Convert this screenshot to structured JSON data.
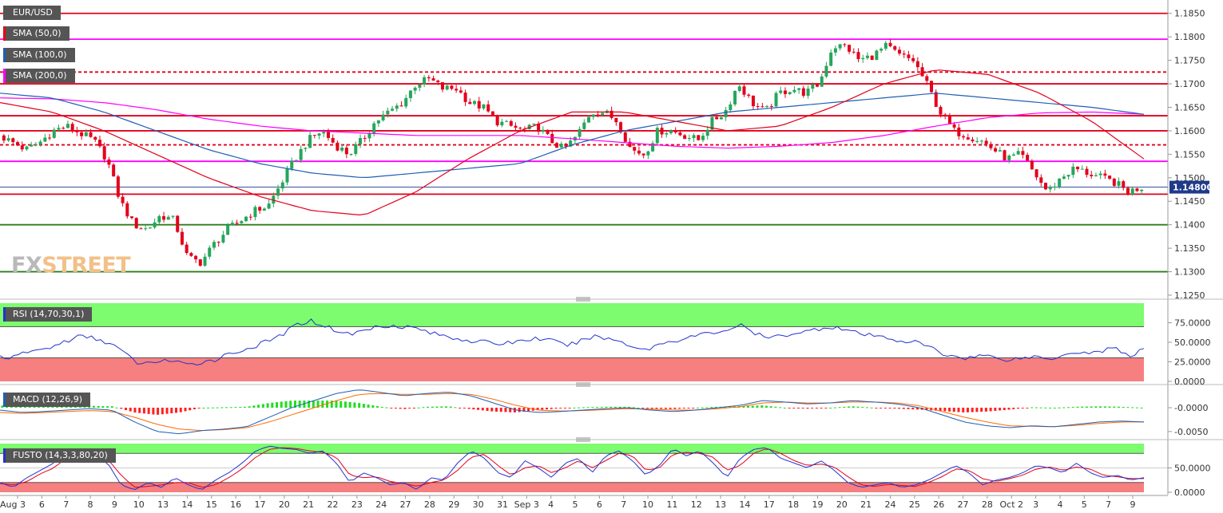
{
  "instrument": "EUR/USD",
  "legend": [
    {
      "text": "EUR/USD",
      "color": "#555555"
    },
    {
      "text": "SMA (50,0)",
      "color": "#e3001b"
    },
    {
      "text": "SMA (100,0)",
      "color": "#1f5fb5"
    },
    {
      "text": "SMA (200,0)",
      "color": "#ff00ff"
    }
  ],
  "logo": {
    "part1": "FX",
    "part2": "STREET"
  },
  "current_price": "1.14800",
  "colors": {
    "up": "#26a65b",
    "down": "#e3001b",
    "sma50": "#e3001b",
    "sma100": "#1f5fb5",
    "sma200": "#ff00ff",
    "hline_red": "#e3001b",
    "hline_magenta": "#ff00ff",
    "hline_green": "#2e7d1e",
    "rsi": "#2233cc",
    "macd": "#1f5fb5",
    "signal": "#ff6a00",
    "stoch_k": "#2233cc",
    "stoch_d": "#e3001b",
    "zone_green": "#7cfc6e",
    "zone_red": "#f67f7f"
  },
  "chart_data": [
    {
      "type": "candlestick",
      "title": "EUR/USD",
      "y_ticks": [
        "1.1850",
        "1.1800",
        "1.1750",
        "1.1700",
        "1.1650",
        "1.1600",
        "1.1550",
        "1.1500",
        "1.1450",
        "1.1400",
        "1.1350",
        "1.1300",
        "1.1250"
      ],
      "ylim": [
        1.125,
        1.1875
      ],
      "x_ticks": [
        "Aug 3",
        "6",
        "7",
        "8",
        "9",
        "10",
        "13",
        "14",
        "15",
        "16",
        "17",
        "20",
        "21",
        "22",
        "23",
        "24",
        "27",
        "28",
        "29",
        "30",
        "31",
        "Sep 3",
        "4",
        "5",
        "6",
        "7",
        "10",
        "11",
        "12",
        "13",
        "14",
        "17",
        "18",
        "19",
        "20",
        "21",
        "24",
        "25",
        "26",
        "27",
        "28",
        "Oct 2",
        "3",
        "4",
        "5",
        "7",
        "9"
      ],
      "close_path": [
        1.159,
        1.1575,
        1.156,
        1.1575,
        1.16,
        1.161,
        1.1595,
        1.158,
        1.154,
        1.145,
        1.14,
        1.139,
        1.142,
        1.141,
        1.133,
        1.132,
        1.136,
        1.139,
        1.141,
        1.143,
        1.144,
        1.149,
        1.154,
        1.158,
        1.16,
        1.157,
        1.155,
        1.158,
        1.162,
        1.164,
        1.166,
        1.17,
        1.171,
        1.169,
        1.169,
        1.166,
        1.165,
        1.162,
        1.161,
        1.16,
        1.161,
        1.158,
        1.156,
        1.159,
        1.164,
        1.164,
        1.162,
        1.156,
        1.155,
        1.16,
        1.16,
        1.159,
        1.158,
        1.162,
        1.164,
        1.17,
        1.166,
        1.164,
        1.168,
        1.169,
        1.168,
        1.17,
        1.178,
        1.178,
        1.175,
        1.176,
        1.178,
        1.176,
        1.175,
        1.17,
        1.164,
        1.16,
        1.159,
        1.158,
        1.156,
        1.154,
        1.155,
        1.151,
        1.147,
        1.15,
        1.152,
        1.151,
        1.15,
        1.149,
        1.147,
        1.148
      ],
      "hlines": [
        {
          "price": 1.185,
          "style": "solid",
          "color": "red"
        },
        {
          "price": 1.1795,
          "style": "solid",
          "color": "magenta"
        },
        {
          "price": 1.1725,
          "style": "dashed",
          "color": "red"
        },
        {
          "price": 1.17,
          "style": "solid",
          "color": "red"
        },
        {
          "price": 1.1632,
          "style": "solid",
          "color": "red"
        },
        {
          "price": 1.16,
          "style": "solid",
          "color": "red"
        },
        {
          "price": 1.157,
          "style": "dashed",
          "color": "red"
        },
        {
          "price": 1.1535,
          "style": "solid",
          "color": "magenta"
        },
        {
          "price": 1.1465,
          "style": "solid",
          "color": "red"
        },
        {
          "price": 1.14,
          "style": "solid",
          "color": "green"
        },
        {
          "price": 1.13,
          "style": "solid",
          "color": "green"
        }
      ],
      "sma50": [
        1.166,
        1.164,
        1.16,
        1.155,
        1.15,
        1.146,
        1.143,
        1.142,
        1.147,
        1.154,
        1.16,
        1.164,
        1.164,
        1.162,
        1.16,
        1.161,
        1.165,
        1.17,
        1.173,
        1.172,
        1.168,
        1.162,
        1.154
      ],
      "sma100": [
        1.168,
        1.167,
        1.164,
        1.16,
        1.156,
        1.153,
        1.151,
        1.15,
        1.151,
        1.152,
        1.153,
        1.157,
        1.16,
        1.162,
        1.164,
        1.165,
        1.166,
        1.167,
        1.168,
        1.167,
        1.166,
        1.165,
        1.1635
      ],
      "sma200": [
        1.167,
        1.1668,
        1.166,
        1.1645,
        1.1625,
        1.161,
        1.16,
        1.1595,
        1.159,
        1.159,
        1.159,
        1.1583,
        1.1575,
        1.1567,
        1.1563,
        1.1567,
        1.1575,
        1.159,
        1.161,
        1.1628,
        1.1638,
        1.164,
        1.1635
      ]
    },
    {
      "type": "line",
      "title": "RSI (14,70,30,1)",
      "y_ticks": [
        "75.0000",
        "50.0000",
        "25.0000",
        "0.0000"
      ],
      "ylim": [
        0,
        100
      ],
      "zones": {
        "upper": 70,
        "lower": 30
      },
      "values": [
        32,
        30,
        38,
        40,
        45,
        52,
        58,
        55,
        50,
        40,
        25,
        22,
        28,
        25,
        20,
        25,
        28,
        35,
        40,
        45,
        52,
        60,
        72,
        78,
        72,
        65,
        60,
        65,
        70,
        72,
        70,
        68,
        62,
        58,
        55,
        52,
        50,
        48,
        50,
        53,
        55,
        52,
        46,
        50,
        58,
        55,
        52,
        45,
        40,
        48,
        52,
        55,
        60,
        62,
        66,
        72,
        62,
        55,
        58,
        62,
        64,
        68,
        70,
        65,
        60,
        58,
        55,
        52,
        50,
        45,
        35,
        32,
        30,
        34,
        30,
        28,
        30,
        32,
        28,
        35,
        38,
        36,
        40,
        42,
        32,
        42
      ]
    },
    {
      "type": "line",
      "title": "MACD (12,26,9)",
      "y_ticks": [
        "-0.0000",
        "-0.0050"
      ],
      "ylim": [
        -0.0062,
        0.0042
      ],
      "macd": [
        -0.0005,
        -0.001,
        -0.0008,
        -0.0005,
        -0.0002,
        -0.0005,
        -0.003,
        -0.005,
        -0.0055,
        -0.0048,
        -0.0045,
        -0.004,
        -0.002,
        0.0,
        0.0015,
        0.003,
        0.0038,
        0.0032,
        0.0025,
        0.003,
        0.0033,
        0.0025,
        0.001,
        -0.0005,
        -0.001,
        -0.0008,
        -0.0005,
        -0.0002,
        0.0,
        -0.0005,
        -0.0008,
        -0.0005,
        0.0,
        0.0005,
        0.0015,
        0.0012,
        0.0008,
        0.001,
        0.0015,
        0.0012,
        0.0008,
        0.0,
        -0.0015,
        -0.003,
        -0.0038,
        -0.0042,
        -0.0038,
        -0.004,
        -0.0035,
        -0.003,
        -0.0028,
        -0.003
      ],
      "signal": [
        -0.001,
        -0.0012,
        -0.001,
        -0.0008,
        -0.0006,
        -0.0008,
        -0.002,
        -0.0035,
        -0.0045,
        -0.0048,
        -0.0046,
        -0.0042,
        -0.003,
        -0.0015,
        0.0,
        0.0015,
        0.0028,
        0.003,
        0.0028,
        0.0028,
        0.003,
        0.0028,
        0.0018,
        0.0005,
        -0.0005,
        -0.0007,
        -0.0006,
        -0.0004,
        -0.0002,
        -0.0003,
        -0.0005,
        -0.0005,
        -0.0002,
        0.0002,
        0.001,
        0.0012,
        0.001,
        0.001,
        0.0012,
        0.0012,
        0.001,
        0.0004,
        -0.0008,
        -0.002,
        -0.003,
        -0.0038,
        -0.0039,
        -0.004,
        -0.0037,
        -0.0033,
        -0.003,
        -0.003
      ]
    },
    {
      "type": "line",
      "title": "FUSTO (14,3,3,80,20)",
      "y_ticks": [
        "50.0000",
        "0.0000"
      ],
      "ylim": [
        0,
        100
      ],
      "zones": {
        "upper": 80,
        "lower": 20
      },
      "k": [
        20,
        10,
        30,
        45,
        60,
        85,
        80,
        75,
        60,
        15,
        5,
        20,
        10,
        30,
        15,
        5,
        25,
        40,
        60,
        85,
        95,
        90,
        88,
        80,
        85,
        60,
        20,
        40,
        30,
        15,
        20,
        5,
        30,
        25,
        60,
        85,
        70,
        40,
        30,
        65,
        50,
        30,
        60,
        70,
        40,
        75,
        85,
        65,
        35,
        55,
        90,
        75,
        85,
        60,
        30,
        70,
        88,
        92,
        70,
        60,
        50,
        65,
        45,
        20,
        10,
        15,
        20,
        10,
        15,
        25,
        40,
        55,
        40,
        15,
        25,
        30,
        40,
        55,
        50,
        40,
        60,
        40,
        30,
        35,
        25,
        30
      ],
      "d": [
        18,
        15,
        22,
        38,
        50,
        72,
        82,
        78,
        68,
        35,
        10,
        12,
        15,
        20,
        20,
        10,
        15,
        30,
        48,
        72,
        88,
        92,
        90,
        85,
        82,
        72,
        35,
        30,
        32,
        22,
        18,
        12,
        20,
        25,
        45,
        72,
        78,
        55,
        35,
        50,
        55,
        40,
        50,
        65,
        50,
        65,
        80,
        75,
        45,
        50,
        78,
        82,
        80,
        72,
        45,
        55,
        80,
        90,
        80,
        65,
        55,
        58,
        52,
        32,
        15,
        12,
        16,
        14,
        12,
        20,
        32,
        48,
        45,
        28,
        22,
        28,
        35,
        48,
        52,
        45,
        52,
        48,
        35,
        32,
        28,
        28
      ]
    }
  ]
}
